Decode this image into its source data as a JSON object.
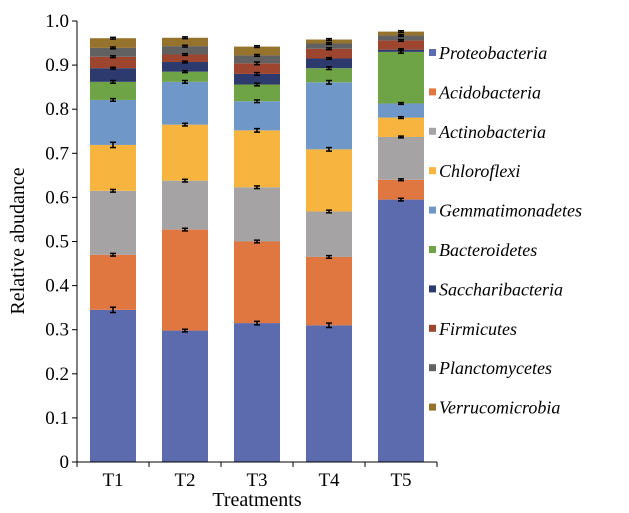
{
  "chart_data": {
    "type": "bar",
    "stacked": true,
    "xlabel": "Treatments",
    "ylabel": "Relative abudance",
    "ylim": [
      0,
      1.0
    ],
    "yticks": [
      "0",
      "0.1",
      "0.2",
      "0.3",
      "0.4",
      "0.5",
      "0.6",
      "0.7",
      "0.8",
      "0.9",
      "1.0"
    ],
    "categories": [
      "T1",
      "T2",
      "T3",
      "T4",
      "T5"
    ],
    "legend_position": "right",
    "series": [
      {
        "name": "Proteobacteria",
        "color": "#5B6BAE",
        "values": [
          0.345,
          0.298,
          0.315,
          0.31,
          0.595
        ],
        "errors": [
          0.006,
          0.003,
          0.004,
          0.005,
          0.003
        ]
      },
      {
        "name": "Acidobacteria",
        "color": "#E07640",
        "values": [
          0.125,
          0.229,
          0.185,
          0.155,
          0.045
        ],
        "errors": [
          0.003,
          0.003,
          0.003,
          0.003,
          0.002
        ]
      },
      {
        "name": "Actinobacteria",
        "color": "#A5A3A3",
        "values": [
          0.145,
          0.111,
          0.123,
          0.103,
          0.097
        ],
        "errors": [
          0.003,
          0.003,
          0.003,
          0.003,
          0.002
        ]
      },
      {
        "name": "Chloroflexi",
        "color": "#F7B43E",
        "values": [
          0.104,
          0.127,
          0.129,
          0.141,
          0.044
        ],
        "errors": [
          0.006,
          0.003,
          0.004,
          0.004,
          0.002
        ]
      },
      {
        "name": "Gemmatimonadetes",
        "color": "#6F98C8",
        "values": [
          0.102,
          0.097,
          0.066,
          0.152,
          0.032
        ],
        "errors": [
          0.003,
          0.003,
          0.003,
          0.004,
          0.002
        ]
      },
      {
        "name": "Bacteroidetes",
        "color": "#6FA446",
        "values": [
          0.041,
          0.023,
          0.038,
          0.032,
          0.117
        ],
        "errors": [
          0.003,
          0.002,
          0.003,
          0.003,
          0.003
        ]
      },
      {
        "name": "Saccharibacteria",
        "color": "#2D3A6E",
        "values": [
          0.031,
          0.022,
          0.024,
          0.022,
          0.005
        ],
        "errors": [
          0.002,
          0.002,
          0.003,
          0.002,
          0.002
        ]
      },
      {
        "name": "Firmicutes",
        "color": "#9E4530",
        "values": [
          0.026,
          0.017,
          0.024,
          0.022,
          0.021
        ],
        "errors": [
          0.002,
          0.002,
          0.003,
          0.002,
          0.002
        ]
      },
      {
        "name": "Planctomycetes",
        "color": "#616161",
        "values": [
          0.02,
          0.019,
          0.018,
          0.012,
          0.011
        ],
        "errors": [
          0.002,
          0.002,
          0.002,
          0.002,
          0.002
        ]
      },
      {
        "name": "Verrucomicrobia",
        "color": "#96732C",
        "values": [
          0.022,
          0.019,
          0.02,
          0.009,
          0.009
        ],
        "errors": [
          0.002,
          0.002,
          0.002,
          0.002,
          0.002
        ]
      }
    ]
  }
}
